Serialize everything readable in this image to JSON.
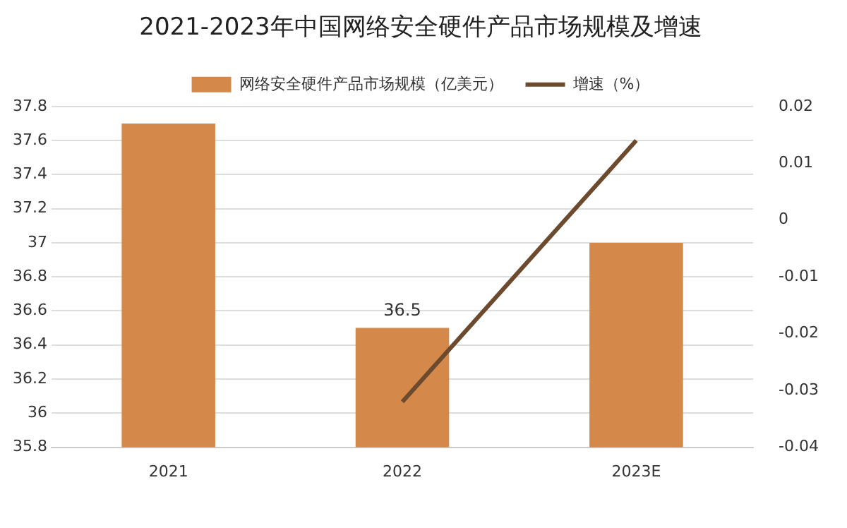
{
  "chart_data": {
    "type": "bar",
    "title": "2021-2023年中国网络安全硬件产品市场规模及增速",
    "categories": [
      "2021",
      "2022",
      "2023E"
    ],
    "series": [
      {
        "name": "网络安全硬件产品市场规模（亿美元）",
        "color": "#d4894b",
        "values": [
          37.7,
          36.5,
          37.0
        ],
        "value_labels": [
          null,
          "36.5",
          null
        ]
      },
      {
        "name": "增速（%）",
        "type": "line",
        "axis": "y2",
        "color": "#6b4a2e",
        "values": [
          null,
          -0.032,
          0.014
        ]
      }
    ],
    "ylim": [
      35.8,
      37.8
    ],
    "yticks": [
      35.8,
      36,
      36.2,
      36.4,
      36.6,
      36.8,
      37,
      37.2,
      37.4,
      37.6,
      37.8
    ],
    "y2lim": [
      -0.04,
      0.02
    ],
    "y2ticks": [
      -0.04,
      -0.03,
      -0.02,
      -0.01,
      0,
      0.01,
      0.02
    ],
    "grid": "y",
    "legend": "top",
    "marker": "none"
  }
}
